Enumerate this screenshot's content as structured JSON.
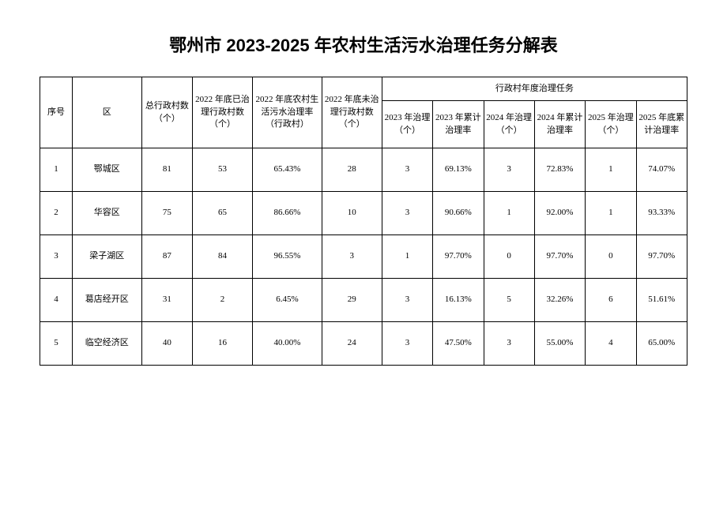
{
  "title": "鄂州市 2023-2025 年农村生活污水治理任务分解表",
  "headers": {
    "seq": "序号",
    "district": "区",
    "total_villages": "总行政村数（个）",
    "treated_2022": "2022 年底已治理行政村数（个）",
    "rate_2022": "2022 年底农村生活污水治理率（行政村）",
    "untreated_2022": "2022 年底未治理行政村数（个）",
    "annual_task": "行政村年度治理任务",
    "treat_2023": "2023 年治理（个）",
    "cumrate_2023": "2023 年累计治理率",
    "treat_2024": "2024 年治理（个）",
    "cumrate_2024": "2024 年累计治理率",
    "treat_2025": "2025 年治理（个）",
    "cumrate_2025": "2025 年底累计治理率"
  },
  "rows": [
    {
      "seq": "1",
      "district": "鄂城区",
      "total": "81",
      "treated_2022": "53",
      "rate_2022": "65.43%",
      "untreated_2022": "28",
      "treat_2023": "3",
      "cumrate_2023": "69.13%",
      "treat_2024": "3",
      "cumrate_2024": "72.83%",
      "treat_2025": "1",
      "cumrate_2025": "74.07%"
    },
    {
      "seq": "2",
      "district": "华容区",
      "total": "75",
      "treated_2022": "65",
      "rate_2022": "86.66%",
      "untreated_2022": "10",
      "treat_2023": "3",
      "cumrate_2023": "90.66%",
      "treat_2024": "1",
      "cumrate_2024": "92.00%",
      "treat_2025": "1",
      "cumrate_2025": "93.33%"
    },
    {
      "seq": "3",
      "district": "梁子湖区",
      "total": "87",
      "treated_2022": "84",
      "rate_2022": "96.55%",
      "untreated_2022": "3",
      "treat_2023": "1",
      "cumrate_2023": "97.70%",
      "treat_2024": "0",
      "cumrate_2024": "97.70%",
      "treat_2025": "0",
      "cumrate_2025": "97.70%"
    },
    {
      "seq": "4",
      "district": "葛店经开区",
      "total": "31",
      "treated_2022": "2",
      "rate_2022": "6.45%",
      "untreated_2022": "29",
      "treat_2023": "3",
      "cumrate_2023": "16.13%",
      "treat_2024": "5",
      "cumrate_2024": "32.26%",
      "treat_2025": "6",
      "cumrate_2025": "51.61%"
    },
    {
      "seq": "5",
      "district": "临空经济区",
      "total": "40",
      "treated_2022": "16",
      "rate_2022": "40.00%",
      "untreated_2022": "24",
      "treat_2023": "3",
      "cumrate_2023": "47.50%",
      "treat_2024": "3",
      "cumrate_2024": "55.00%",
      "treat_2025": "4",
      "cumrate_2025": "65.00%"
    }
  ]
}
